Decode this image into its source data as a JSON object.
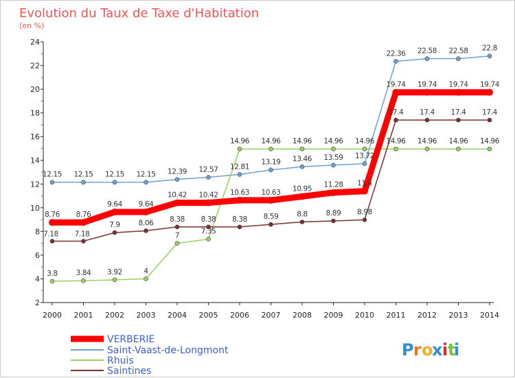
{
  "chart_data": {
    "type": "line",
    "title": "Evolution du Taux de Taxe d'Habitation",
    "subtitle": "(en %)",
    "x": [
      "2000",
      "2001",
      "2002",
      "2003",
      "2004",
      "2005",
      "2006",
      "2007",
      "2008",
      "2009",
      "2010",
      "2011",
      "2012",
      "2013",
      "2014"
    ],
    "ylim": [
      2,
      24
    ],
    "yticks": [
      "2",
      "4",
      "6",
      "8",
      "10",
      "12",
      "14",
      "16",
      "18",
      "20",
      "22",
      "24"
    ],
    "grid": false,
    "legend_placement": "bottom-left",
    "series": [
      {
        "name": "VERBERIE",
        "color": "#ff0000",
        "values": [
          8.76,
          8.76,
          9.64,
          9.64,
          10.42,
          10.42,
          10.63,
          10.63,
          10.95,
          11.28,
          11.4,
          19.74,
          19.74,
          19.74,
          19.74
        ],
        "labels": [
          "8.76",
          "8.76",
          "9.64",
          "9.64",
          "10.42",
          "10.42",
          "10.63",
          "10.63",
          "10.95",
          "11.28",
          "11.4",
          "19.74",
          "19.74",
          "19.74",
          "19.74"
        ]
      },
      {
        "name": "Saint-Vaast-de-Longmont",
        "color": "#6ea0d2",
        "values": [
          12.15,
          12.15,
          12.15,
          12.15,
          12.39,
          12.57,
          12.81,
          13.19,
          13.46,
          13.59,
          13.72,
          22.36,
          22.58,
          22.58,
          22.8
        ],
        "labels": [
          "12.15",
          "12.15",
          "12.15",
          "12.15",
          "12.39",
          "12.57",
          "12.81",
          "13.19",
          "13.46",
          "13.59",
          "13.72",
          "22.36",
          "22.58",
          "22.58",
          "22.8"
        ]
      },
      {
        "name": "Rhuis",
        "color": "#9ad060",
        "values": [
          3.8,
          3.84,
          3.92,
          4,
          7,
          7.35,
          14.96,
          14.96,
          14.96,
          14.96,
          14.96,
          14.96,
          14.96,
          14.96,
          14.96
        ],
        "labels": [
          "3.8",
          "3.84",
          "3.92",
          "4",
          "7",
          "7.35",
          "14.96",
          "14.96",
          "14.96",
          "14.96",
          "14.96",
          "14.96",
          "14.96",
          "14.96",
          "14.96"
        ]
      },
      {
        "name": "Saintines",
        "color": "#7a2e2e",
        "values": [
          7.18,
          7.18,
          7.9,
          8.06,
          8.38,
          8.38,
          8.38,
          8.59,
          8.8,
          8.89,
          8.98,
          17.4,
          17.4,
          17.4,
          17.4
        ],
        "labels": [
          "7.18",
          "7.18",
          "7.9",
          "8.06",
          "8.38",
          "8.38",
          "8.38",
          "8.59",
          "8.8",
          "8.89",
          "8.98",
          "17.4",
          "17.4",
          "17.4",
          "17.4"
        ]
      }
    ]
  },
  "logo": {
    "text": "Proxiti",
    "letters": [
      "P",
      "r",
      "o",
      "x",
      "i",
      "t",
      "i"
    ],
    "colors": [
      "#2e8fd6",
      "#e07a20",
      "#f0b020",
      "#2e8fd6",
      "#d03030",
      "#7ac040",
      "#2e8fd6"
    ]
  }
}
